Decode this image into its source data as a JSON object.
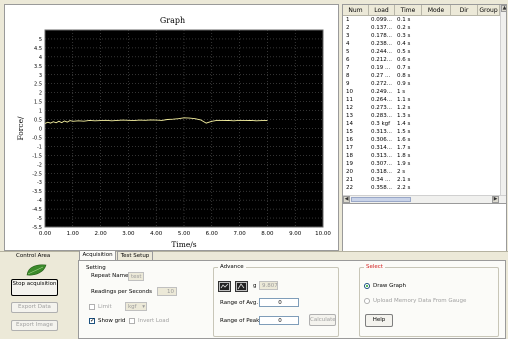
{
  "graph": {
    "title": "Graph",
    "x_axis_label": "Time/s",
    "y_axis_label": "Force/",
    "x_ticks": [
      "0.00",
      "1.00",
      "2.00",
      "3.00",
      "4.00",
      "5.00",
      "6.00",
      "7.00",
      "8.00",
      "9.00",
      "10.00"
    ],
    "y_ticks": [
      "5",
      "4.5",
      "4",
      "3.5",
      "3",
      "2.5",
      "2",
      "1.5",
      "1",
      "0.5",
      "0",
      "-0.5",
      "-1",
      "-1.5",
      "-2",
      "-2.5",
      "-3",
      "-3.5",
      "-4",
      "-4.5",
      "-5",
      "-5.5"
    ]
  },
  "chart_data": {
    "type": "line",
    "xlabel": "Time/s",
    "ylabel": "Force/",
    "xlim": [
      0,
      10
    ],
    "ylim": [
      -5.5,
      5.5
    ],
    "grid": true,
    "background": "#000000",
    "line_color": "#f5f0a0",
    "series": [
      {
        "x": [
          0.0,
          0.1,
          0.2,
          0.3,
          0.4,
          0.5,
          0.6,
          0.7,
          0.8,
          0.9,
          1.0,
          1.2,
          1.4,
          1.6,
          1.8,
          2.0,
          2.2,
          2.4,
          2.6,
          2.8,
          3.0,
          3.2,
          3.4,
          3.6,
          3.8,
          4.0,
          4.2,
          4.4,
          4.6,
          4.8,
          5.0,
          5.2,
          5.4,
          5.6,
          5.8,
          6.0,
          6.2,
          6.4,
          6.6,
          6.8,
          7.0,
          7.2,
          7.4,
          7.6,
          7.8,
          8.0
        ],
        "y": [
          0.28,
          0.35,
          0.3,
          0.38,
          0.32,
          0.4,
          0.33,
          0.42,
          0.36,
          0.44,
          0.4,
          0.43,
          0.41,
          0.45,
          0.43,
          0.44,
          0.46,
          0.43,
          0.45,
          0.47,
          0.46,
          0.44,
          0.47,
          0.46,
          0.48,
          0.47,
          0.45,
          0.5,
          0.52,
          0.55,
          0.6,
          0.58,
          0.55,
          0.48,
          0.3,
          0.4,
          0.46,
          0.44,
          0.45,
          0.43,
          0.46,
          0.44,
          0.45,
          0.43,
          0.44,
          0.45
        ]
      }
    ]
  },
  "table": {
    "headers": [
      "Num",
      "Load",
      "Time",
      "Mode",
      "Dir",
      "Group"
    ],
    "rows": [
      [
        "1",
        "0.099...",
        "0.1 s"
      ],
      [
        "2",
        "0.137...",
        "0.2 s"
      ],
      [
        "3",
        "0.178...",
        "0.3 s"
      ],
      [
        "4",
        "0.238...",
        "0.4 s"
      ],
      [
        "5",
        "0.244...",
        "0.5 s"
      ],
      [
        "6",
        "0.212...",
        "0.6 s"
      ],
      [
        "7",
        "0.19 ...",
        "0.7 s"
      ],
      [
        "8",
        "0.27 ...",
        "0.8 s"
      ],
      [
        "9",
        "0.272...",
        "0.9 s"
      ],
      [
        "10",
        "0.249...",
        "1 s"
      ],
      [
        "11",
        "0.264...",
        "1.1 s"
      ],
      [
        "12",
        "0.273...",
        "1.2 s"
      ],
      [
        "13",
        "0.283...",
        "1.3 s"
      ],
      [
        "14",
        "0.3  kgf",
        "1.4 s"
      ],
      [
        "15",
        "0.313...",
        "1.5 s"
      ],
      [
        "16",
        "0.306...",
        "1.6 s"
      ],
      [
        "17",
        "0.314...",
        "1.7 s"
      ],
      [
        "18",
        "0.313...",
        "1.8 s"
      ],
      [
        "19",
        "0.307...",
        "1.9 s"
      ],
      [
        "20",
        "0.318...",
        "2 s"
      ],
      [
        "21",
        "0.34 ...",
        "2.1 s"
      ],
      [
        "22",
        "0.358...",
        "2.2 s"
      ]
    ]
  },
  "control_area": {
    "label": "Control Area",
    "stop_button": "Stop acquisition",
    "export_data_button": "Export Data",
    "export_image_button": "Export Image"
  },
  "tabs": [
    "Acquisition",
    "Test Setup"
  ],
  "setting": {
    "title": "Setting",
    "repeat_name_label": "Repeat Name",
    "repeat_name_value": "test",
    "readings_label": "Readings per Seconds",
    "readings_value": "10",
    "limit_label": "Limit",
    "limit_value": "kgf",
    "show_grid_label": "Show grid",
    "invert_load_label": "Invert Load"
  },
  "advance": {
    "title": "Advance",
    "g_label": "g",
    "g_value": "9.807",
    "range_avg_label": "Range of Avg.",
    "range_avg_value": "0",
    "range_peak_label": "Range of Peak",
    "range_peak_value": "0",
    "calculate_button": "Calculate"
  },
  "select": {
    "title": "Select",
    "draw_graph_label": "Draw Graph",
    "upload_label": "Upload Memory Data From Gauge",
    "help_button": "Help"
  },
  "colors": {
    "select_title": "#d22020"
  }
}
